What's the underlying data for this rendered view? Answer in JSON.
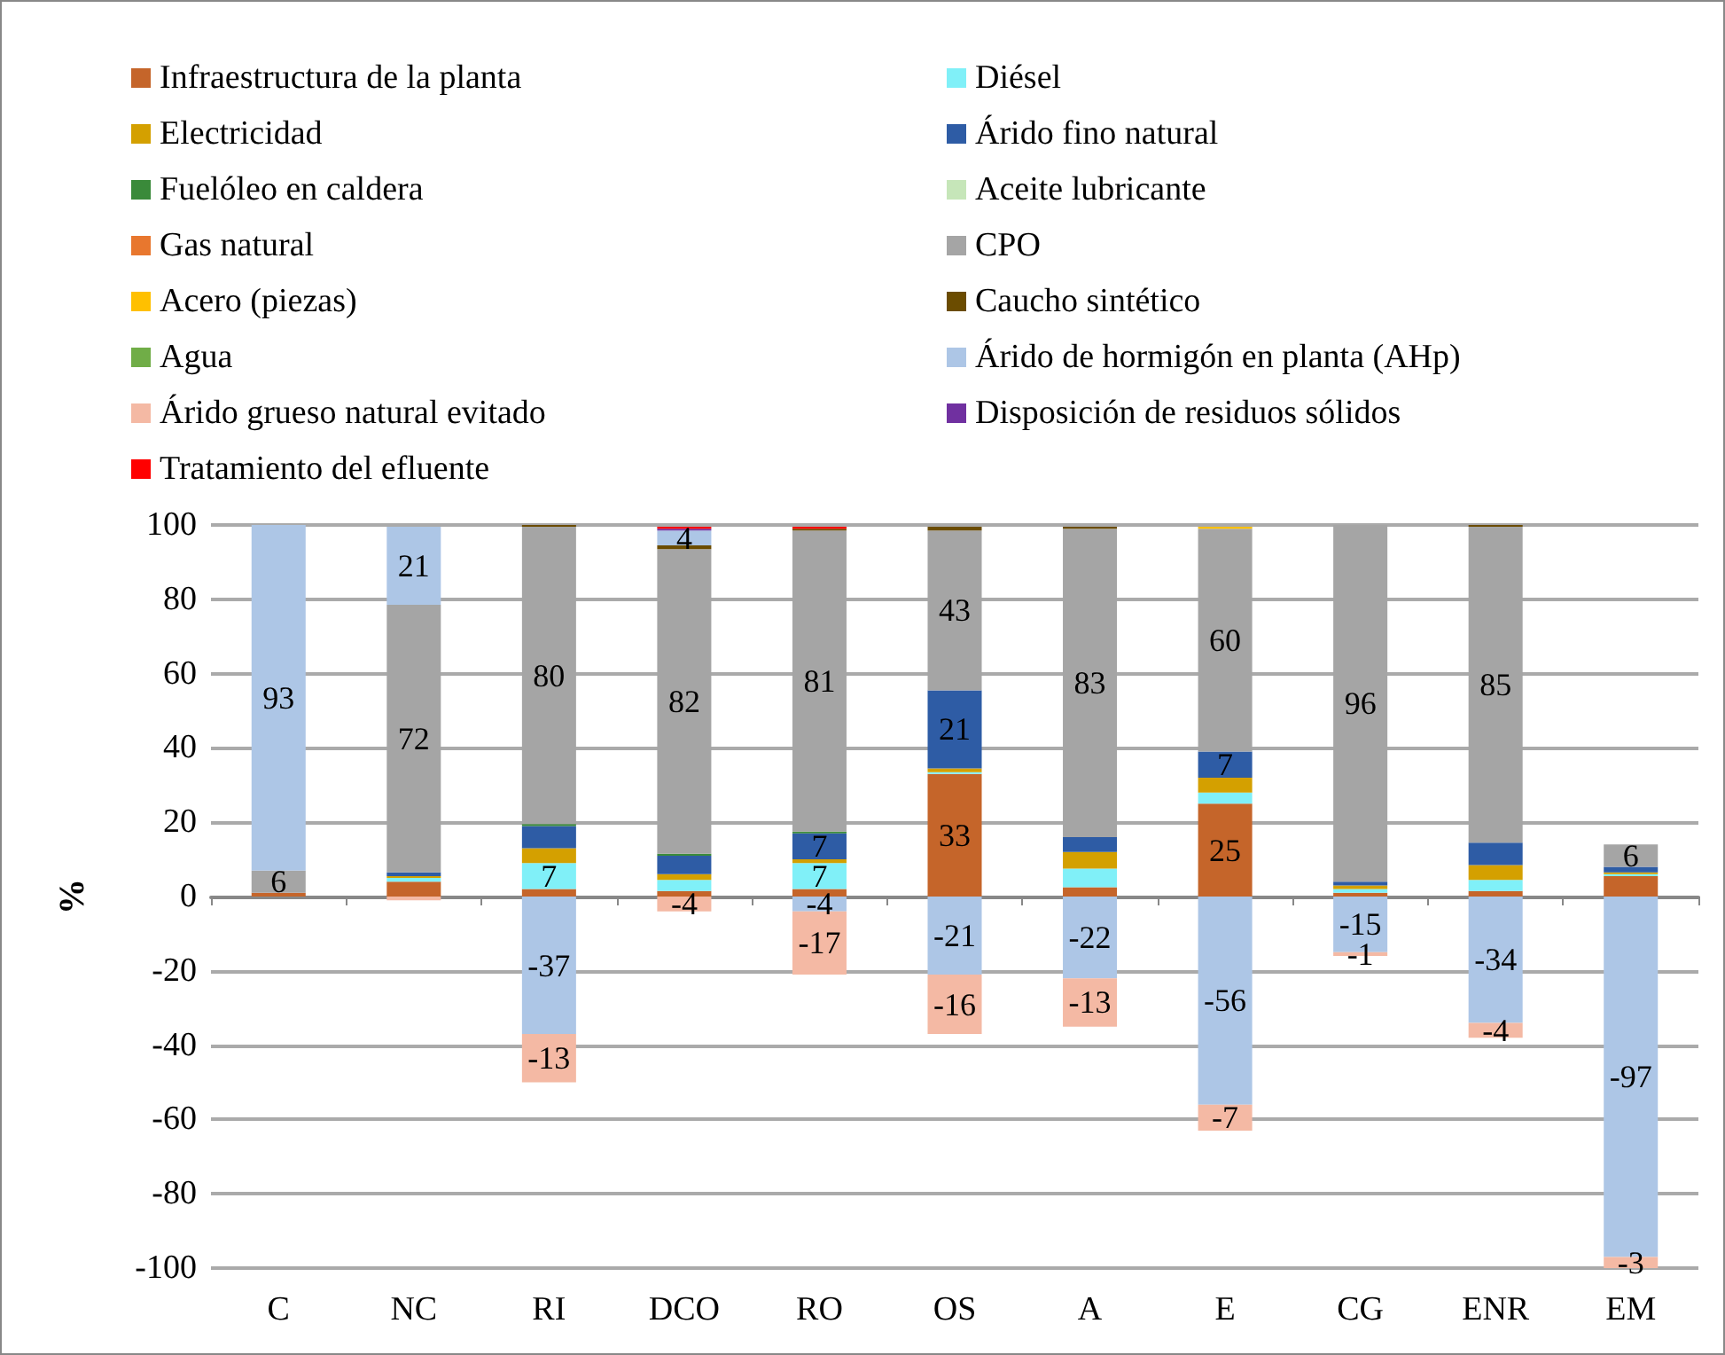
{
  "chart_data": {
    "type": "bar",
    "stacked": true,
    "ylabel": "%",
    "categories": [
      "C",
      "NC",
      "RI",
      "DCO",
      "RO",
      "OS",
      "A",
      "E",
      "CG",
      "ENR",
      "EM"
    ],
    "ylim": [
      -100,
      100
    ],
    "yticks": [
      -100,
      -80,
      -60,
      -40,
      -20,
      0,
      20,
      40,
      60,
      80,
      100
    ],
    "grid": "y",
    "legend": "top",
    "series": [
      {
        "name": "Infraestructura de la planta",
        "color": "#c5652a",
        "values": [
          1,
          4,
          2,
          1.5,
          2,
          33,
          2.5,
          25,
          1,
          1.5,
          5.5
        ],
        "value_labels": [
          null,
          null,
          null,
          null,
          null,
          "33",
          null,
          "25",
          null,
          null,
          null
        ]
      },
      {
        "name": "Diésel",
        "color": "#80f0f8",
        "values": [
          0,
          1,
          7,
          3,
          7,
          0.5,
          5,
          3,
          1,
          3,
          0.5
        ],
        "value_labels": [
          null,
          null,
          "7",
          null,
          "7",
          null,
          null,
          null,
          null,
          null,
          null
        ]
      },
      {
        "name": "Electricidad",
        "color": "#d4a000",
        "values": [
          0,
          0.5,
          4,
          1.5,
          1,
          1,
          4.5,
          4,
          1,
          4,
          0.5
        ],
        "value_labels": [
          null,
          null,
          null,
          null,
          null,
          null,
          null,
          null,
          null,
          null,
          null
        ]
      },
      {
        "name": "Árido fino natural",
        "color": "#2e5ca5",
        "values": [
          0,
          1,
          6,
          5,
          7,
          21,
          4,
          7,
          1,
          6,
          1.5
        ],
        "value_labels": [
          null,
          null,
          null,
          null,
          "7",
          "21",
          null,
          "7",
          null,
          null,
          null
        ]
      },
      {
        "name": "Fuelóleo en caldera",
        "color": "#3a8a3a",
        "values": [
          0,
          0,
          0.5,
          0.5,
          0.5,
          0,
          0,
          0,
          0,
          0,
          0
        ],
        "value_labels": [
          null,
          null,
          null,
          null,
          null,
          null,
          null,
          null,
          null,
          null,
          null
        ]
      },
      {
        "name": "Aceite lubricante",
        "color": "#c6e6b9",
        "values": [
          0,
          0,
          0,
          null,
          0,
          null,
          0,
          null,
          0,
          null,
          0
        ],
        "value_labels": [
          null,
          null,
          null,
          null,
          null,
          null,
          null,
          null,
          null,
          null,
          null
        ]
      },
      {
        "name": "Gas natural",
        "color": "#e8772e",
        "values": [
          0,
          0,
          0,
          0,
          0,
          0,
          0,
          0,
          0,
          0,
          0
        ],
        "value_labels": [
          null,
          null,
          null,
          null,
          null,
          null,
          null,
          null,
          null,
          null,
          null
        ]
      },
      {
        "name": "CPO",
        "color": "#a5a5a5",
        "values": [
          6,
          72,
          80,
          82,
          81,
          43,
          83,
          60,
          96,
          85,
          6
        ],
        "value_labels": [
          "6",
          "72",
          "80",
          "82",
          "81",
          "43",
          "83",
          "60",
          "96",
          "85",
          "6"
        ]
      },
      {
        "name": "Acero (piezas)",
        "color": "#ffc000",
        "values": [
          0,
          0,
          0,
          0,
          0,
          0,
          0,
          0.5,
          0,
          0,
          0
        ],
        "value_labels": [
          null,
          null,
          null,
          null,
          null,
          null,
          null,
          null,
          null,
          null,
          null
        ]
      },
      {
        "name": "Caucho sintético",
        "color": "#6b4c00",
        "values": [
          0,
          0,
          0.5,
          1,
          0.5,
          1,
          0.5,
          0,
          0,
          0.5,
          0
        ],
        "value_labels": [
          null,
          null,
          null,
          null,
          null,
          null,
          null,
          null,
          null,
          null,
          null
        ]
      },
      {
        "name": "Agua",
        "color": "#70ad47",
        "values": [
          0,
          0,
          0,
          0,
          0,
          0,
          0,
          0,
          0,
          0,
          0
        ],
        "value_labels": [
          null,
          null,
          null,
          null,
          null,
          null,
          null,
          null,
          null,
          null,
          null
        ]
      },
      {
        "name": "Árido de hormigón en planta (AHp)",
        "color": "#adc6e6",
        "values": [
          93,
          21,
          -37,
          4,
          -4,
          -21,
          -22,
          -56,
          -15,
          -34,
          -97
        ],
        "value_labels": [
          "93",
          "21",
          "-37",
          "4",
          "-4",
          "-21",
          "-22",
          "-56",
          "-15",
          "-34",
          "-97"
        ]
      },
      {
        "name": "Árido grueso natural evitado",
        "color": "#f4b9a4",
        "values": [
          0,
          -1,
          -13,
          -4,
          -17,
          -16,
          -13,
          -7,
          -1,
          -4,
          -3
        ],
        "value_labels": [
          null,
          null,
          "-13",
          "-4",
          "-17",
          "-16",
          "-13",
          "-7",
          "-1",
          "-4",
          "-3"
        ]
      },
      {
        "name": "Disposición de residuos sólidos",
        "color": "#7030a0",
        "values": [
          0,
          0,
          0,
          0.5,
          0,
          0,
          0,
          0,
          0,
          0,
          0
        ],
        "value_labels": [
          null,
          null,
          null,
          null,
          null,
          null,
          null,
          null,
          null,
          null,
          null
        ]
      },
      {
        "name": "Tratamiento del efluente",
        "color": "#ff0000",
        "values": [
          0,
          0,
          0,
          0.5,
          0.5,
          0,
          0,
          0,
          0,
          0,
          0
        ],
        "value_labels": [
          null,
          null,
          null,
          null,
          null,
          null,
          null,
          null,
          null,
          null,
          null
        ]
      }
    ]
  }
}
